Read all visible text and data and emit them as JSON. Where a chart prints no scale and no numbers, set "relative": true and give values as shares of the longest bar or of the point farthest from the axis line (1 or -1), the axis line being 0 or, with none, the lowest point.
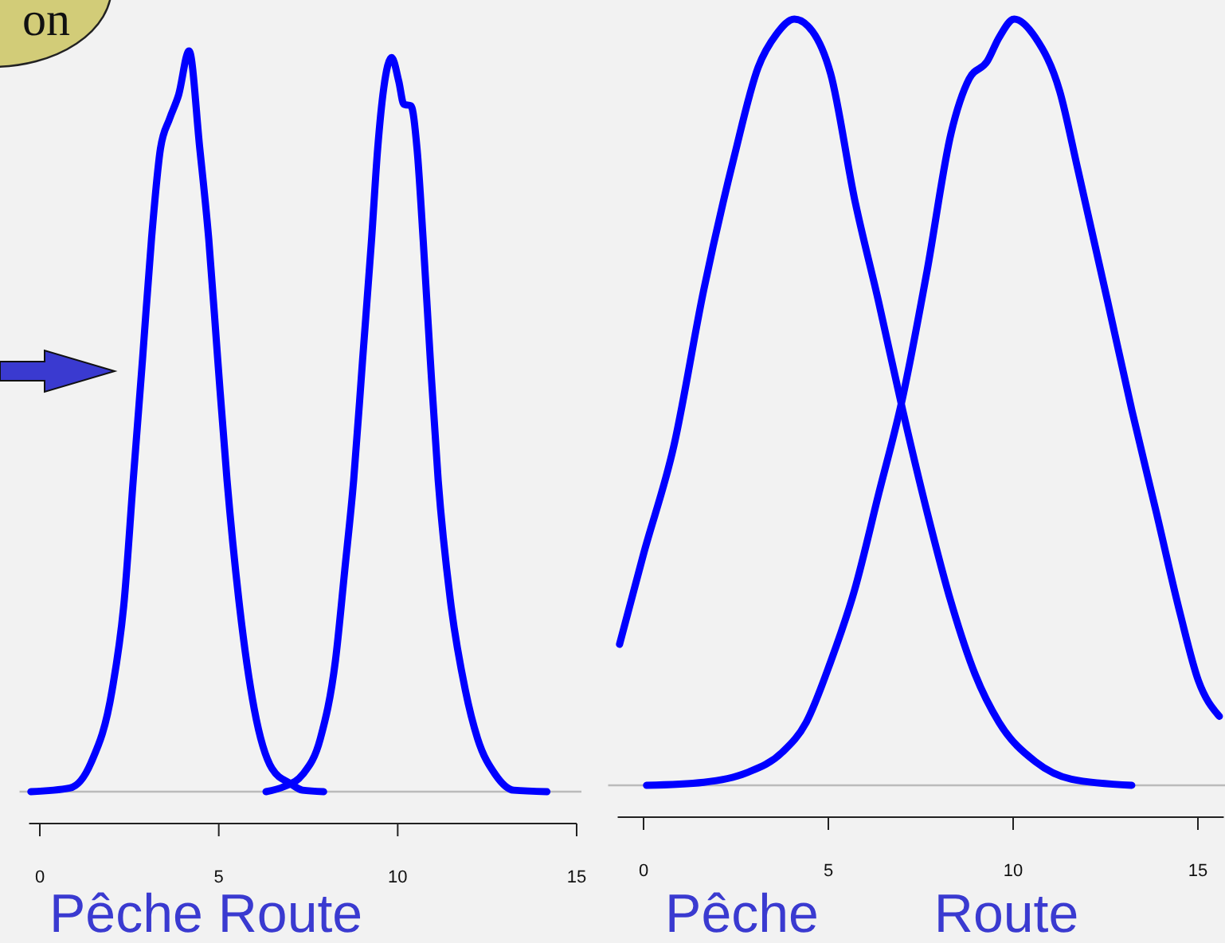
{
  "chart_data": [
    {
      "type": "line",
      "relative": true,
      "xlabel": "Pêche Route",
      "annotations": [
        "on"
      ],
      "xlim": [
        -0.3,
        15
      ],
      "xticks": [
        0,
        5,
        10,
        15
      ],
      "grid": false,
      "marker": "none",
      "line_style": "solid",
      "series": [
        {
          "color": "#0000ff",
          "x": [
            -0.25,
            0.84,
            1.43,
            2.02,
            2.36,
            2.61,
            2.87,
            3.12,
            3.37,
            3.63,
            3.88,
            4.17,
            4.47,
            4.72,
            4.97,
            5.23,
            5.56,
            5.99,
            6.49,
            7.0,
            7.34,
            7.93
          ],
          "values": [
            0,
            0.005,
            0.039,
            0.137,
            0.259,
            0.421,
            0.584,
            0.746,
            0.868,
            0.909,
            0.941,
            1.0,
            0.868,
            0.746,
            0.584,
            0.421,
            0.259,
            0.112,
            0.031,
            0.011,
            0.002,
            0
          ]
        },
        {
          "color": "#0000ff",
          "x": [
            6.32,
            6.83,
            7.34,
            7.84,
            8.26,
            8.52,
            8.77,
            9.02,
            9.27,
            9.44,
            9.61,
            9.83,
            10.03,
            10.17,
            10.37,
            10.54,
            10.71,
            10.91,
            11.13,
            11.47,
            11.89,
            12.23,
            12.73,
            13.24,
            14.17
          ],
          "values": [
            0,
            0.007,
            0.023,
            0.072,
            0.177,
            0.299,
            0.421,
            0.584,
            0.746,
            0.868,
            0.95,
            0.991,
            0.959,
            0.928,
            0.926,
            0.868,
            0.746,
            0.584,
            0.421,
            0.259,
            0.137,
            0.072,
            0.023,
            0.002,
            0
          ]
        }
      ]
    },
    {
      "type": "line",
      "relative": true,
      "annotations": [
        "Pêche",
        "Route"
      ],
      "xlim": [
        -0.7,
        15.7
      ],
      "xticks": [
        0,
        5,
        10,
        15
      ],
      "grid": false,
      "marker": "none",
      "line_style": "solid",
      "series": [
        {
          "color": "#0000ff",
          "x": [
            -0.65,
            0,
            0.82,
            1.63,
            2.45,
            3.1,
            3.59,
            4.08,
            4.57,
            5.06,
            5.71,
            6.36,
            7.01,
            7.67,
            8.32,
            8.97,
            9.62,
            10.6,
            11.58,
            13.21
          ],
          "values": [
            0.184,
            0.302,
            0.443,
            0.647,
            0.82,
            0.937,
            0.98,
            1.0,
            0.984,
            0.929,
            0.765,
            0.631,
            0.49,
            0.357,
            0.239,
            0.145,
            0.082,
            0.031,
            0.008,
            0
          ]
        },
        {
          "color": "#0000ff",
          "x": [
            0.08,
            1.63,
            2.77,
            3.75,
            4.4,
            5.06,
            5.71,
            6.36,
            7.01,
            7.67,
            8.32,
            8.81,
            9.3,
            9.62,
            10.03,
            10.6,
            11.26,
            11.75,
            12.56,
            13.21,
            13.87,
            14.52,
            15.01,
            15.58
          ],
          "values": [
            0,
            0.004,
            0.016,
            0.043,
            0.082,
            0.161,
            0.255,
            0.38,
            0.506,
            0.671,
            0.851,
            0.922,
            0.945,
            0.976,
            1.0,
            0.976,
            0.906,
            0.804,
            0.631,
            0.49,
            0.357,
            0.224,
            0.137,
            0.09
          ]
        }
      ]
    }
  ]
}
